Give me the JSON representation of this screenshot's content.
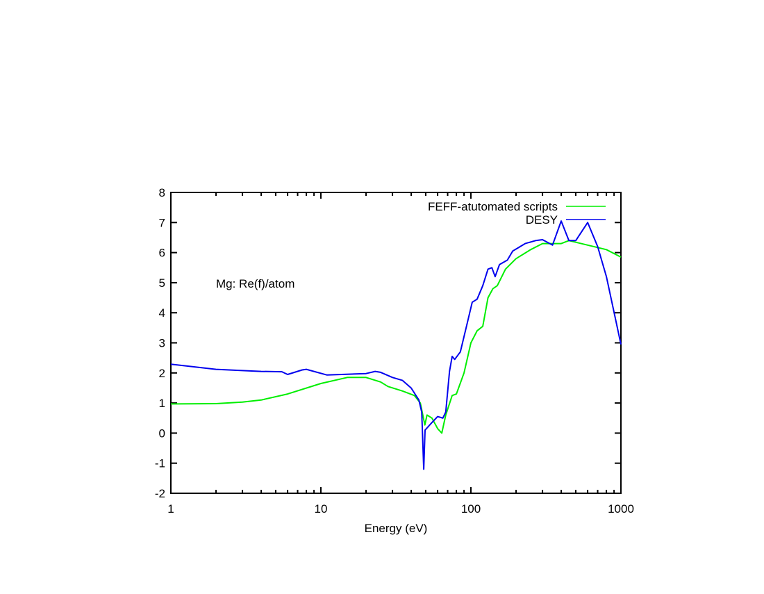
{
  "chart_data": {
    "type": "line",
    "title": "",
    "annotation": "Mg: Re(f)/atom",
    "xlabel": "Energy (eV)",
    "ylabel": "",
    "xscale": "log",
    "xlim": [
      1,
      1000
    ],
    "ylim": [
      -2,
      8
    ],
    "xticks": [
      "1",
      "10",
      "100",
      "1000"
    ],
    "xtick_values": [
      1,
      10,
      100,
      1000
    ],
    "yticks": [
      "-2",
      "-1",
      "0",
      "1",
      "2",
      "3",
      "4",
      "5",
      "6",
      "7",
      "8"
    ],
    "ytick_values": [
      -2,
      -1,
      0,
      1,
      2,
      3,
      4,
      5,
      6,
      7,
      8
    ],
    "grid": false,
    "legend_position": "top-right",
    "series": [
      {
        "name": "FEFF-atutomated scripts",
        "color": "#00ee00",
        "x": [
          1,
          2,
          3,
          4,
          6,
          10,
          15,
          20,
          25,
          28,
          35,
          42,
          46,
          49.3,
          51,
          55,
          60,
          64,
          68,
          75,
          80,
          90,
          100,
          110,
          120,
          130,
          140,
          150,
          170,
          200,
          250,
          300,
          400,
          450,
          600,
          800,
          1000
        ],
        "y": [
          0.97,
          0.98,
          1.03,
          1.1,
          1.3,
          1.65,
          1.85,
          1.85,
          1.7,
          1.55,
          1.4,
          1.25,
          1.0,
          0.27,
          0.6,
          0.5,
          0.15,
          0.0,
          0.6,
          1.25,
          1.3,
          2.0,
          3.0,
          3.4,
          3.55,
          4.5,
          4.8,
          4.9,
          5.45,
          5.8,
          6.1,
          6.3,
          6.3,
          6.4,
          6.25,
          6.1,
          5.85
        ]
      },
      {
        "name": "DESY",
        "color": "#0000ee",
        "x": [
          1,
          2,
          4,
          5.5,
          6,
          7.5,
          8,
          11,
          20,
          23,
          25,
          30,
          35,
          40,
          45,
          47,
          48.5,
          49.5,
          55,
          60,
          65,
          68,
          72,
          75,
          78,
          85,
          95,
          102,
          110,
          120,
          130,
          138,
          145,
          155,
          175,
          190,
          230,
          270,
          300,
          350,
          400,
          450,
          500,
          600,
          700,
          800,
          1000
        ],
        "y": [
          2.29,
          2.12,
          2.05,
          2.04,
          1.95,
          2.1,
          2.12,
          1.93,
          1.98,
          2.05,
          2.02,
          1.85,
          1.75,
          1.5,
          1.1,
          0.7,
          -1.2,
          0.1,
          0.35,
          0.55,
          0.5,
          0.7,
          2.05,
          2.55,
          2.45,
          2.7,
          3.7,
          4.35,
          4.45,
          4.9,
          5.45,
          5.5,
          5.2,
          5.6,
          5.75,
          6.05,
          6.3,
          6.4,
          6.43,
          6.25,
          7.05,
          6.4,
          6.4,
          7.0,
          6.2,
          5.2,
          2.95
        ]
      }
    ]
  }
}
